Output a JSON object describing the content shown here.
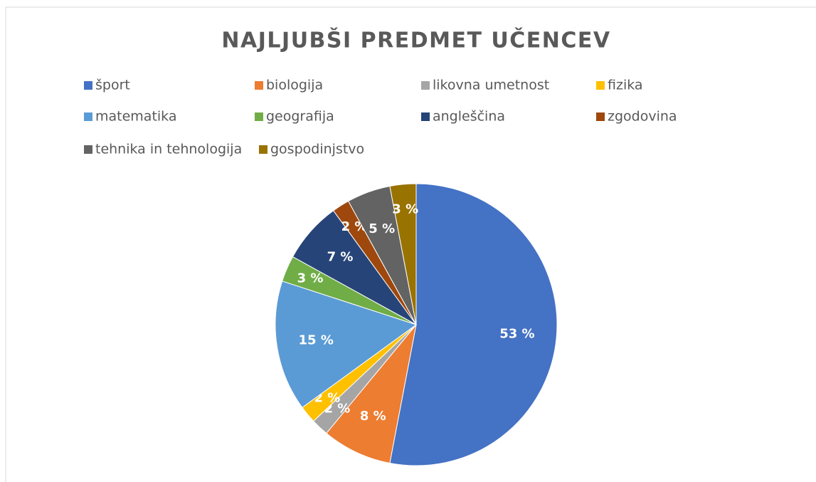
{
  "chart_data": {
    "type": "pie",
    "title": "NAJLJUBŠI PREDMET UČENCEV",
    "categories": [
      "šport",
      "biologija",
      "likovna umetnost",
      "fizika",
      "matematika",
      "geografija",
      "angleščina",
      "zgodovina",
      "tehnika in tehnologija",
      "gospodinjstvo"
    ],
    "values": [
      53,
      8,
      2,
      2,
      15,
      3,
      7,
      2,
      5,
      3
    ],
    "value_labels": [
      "53 %",
      "8 %",
      "2 %",
      "2 %",
      "15 %",
      "3 %",
      "7 %",
      "2 %",
      "5 %",
      "3 %"
    ],
    "colors": [
      "#4472c4",
      "#ed7d31",
      "#a5a5a5",
      "#ffc000",
      "#5b9bd5",
      "#70ad47",
      "#264478",
      "#9e480e",
      "#636363",
      "#997300"
    ],
    "legend": "top"
  }
}
